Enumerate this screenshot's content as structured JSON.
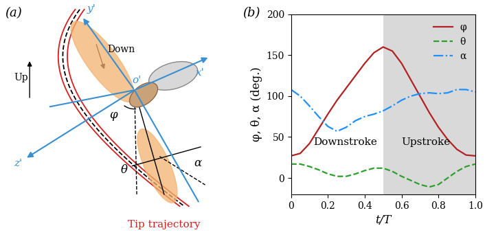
{
  "diagram": {
    "panel_label": "(a)",
    "axis_labels": {
      "y": "y'",
      "x": "x'",
      "z": "z'",
      "origin": "o'"
    },
    "stroke_labels": {
      "up": "Up",
      "down": "Down"
    },
    "angle_labels": {
      "phi": "φ",
      "theta": "θ",
      "alpha": "α"
    },
    "trajectory_label": "Tip trajectory"
  },
  "chart_data": {
    "type": "line",
    "panel_label": "(b)",
    "x_label": "t/T",
    "y_label": "φ, θ, α (deg.)",
    "x": [
      0,
      0.05,
      0.1,
      0.15,
      0.2,
      0.25,
      0.3,
      0.35,
      0.4,
      0.45,
      0.5,
      0.55,
      0.6,
      0.65,
      0.7,
      0.75,
      0.8,
      0.85,
      0.9,
      0.95,
      1.0
    ],
    "series": [
      {
        "name": "φ",
        "color": "#b22222",
        "line_style": "solid",
        "values": [
          27,
          30,
          42,
          60,
          78,
          95,
          110,
          125,
          140,
          153,
          160,
          155,
          140,
          120,
          100,
          80,
          62,
          47,
          35,
          28,
          27
        ]
      },
      {
        "name": "θ",
        "color": "#2ca02c",
        "line_style": "dashed",
        "values": [
          17,
          17,
          14,
          10,
          5,
          2,
          2,
          5,
          9,
          12,
          12,
          8,
          2,
          -3,
          -8,
          -11,
          -8,
          0,
          8,
          14,
          17
        ]
      },
      {
        "name": "α",
        "color": "#1e90ff",
        "line_style": "dashdot",
        "values": [
          108,
          100,
          88,
          75,
          63,
          57,
          62,
          70,
          75,
          78,
          82,
          88,
          95,
          100,
          103,
          104,
          103,
          104,
          108,
          108,
          105
        ]
      }
    ],
    "xlim": [
      0,
      1.0
    ],
    "ylim": [
      -20,
      200
    ],
    "xticks": [
      0,
      0.2,
      0.4,
      0.6,
      0.8,
      1.0
    ],
    "yticks": [
      0,
      50,
      100,
      150,
      200
    ],
    "legend": "upper right",
    "upstroke_span": [
      0.5,
      1.0
    ],
    "annotations": [
      {
        "text": "Downstroke",
        "x": 0.12,
        "y": 40
      },
      {
        "text": "Upstroke",
        "x": 0.6,
        "y": 40
      }
    ]
  }
}
